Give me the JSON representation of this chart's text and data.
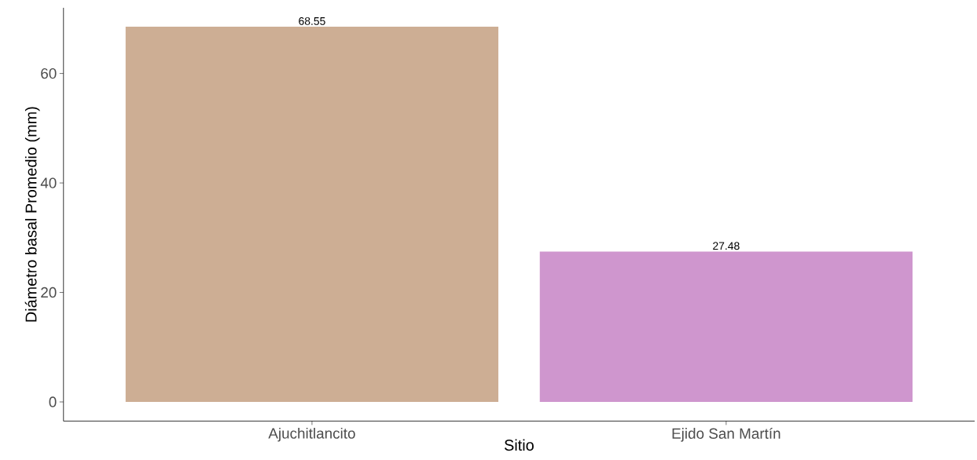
{
  "chart_data": {
    "type": "bar",
    "xlabel": "Sitio",
    "ylabel": "Diámetro basal Promedio (mm)",
    "categories": [
      "Ajuchitlancito",
      "Ejido San Martín"
    ],
    "values": [
      68.55,
      27.48
    ],
    "colors": [
      "#cdae94",
      "#cf96ce"
    ],
    "ylim": [
      -3.5,
      72
    ],
    "yticks": [
      0,
      20,
      40,
      60
    ],
    "data_labels": true,
    "grid": false
  }
}
